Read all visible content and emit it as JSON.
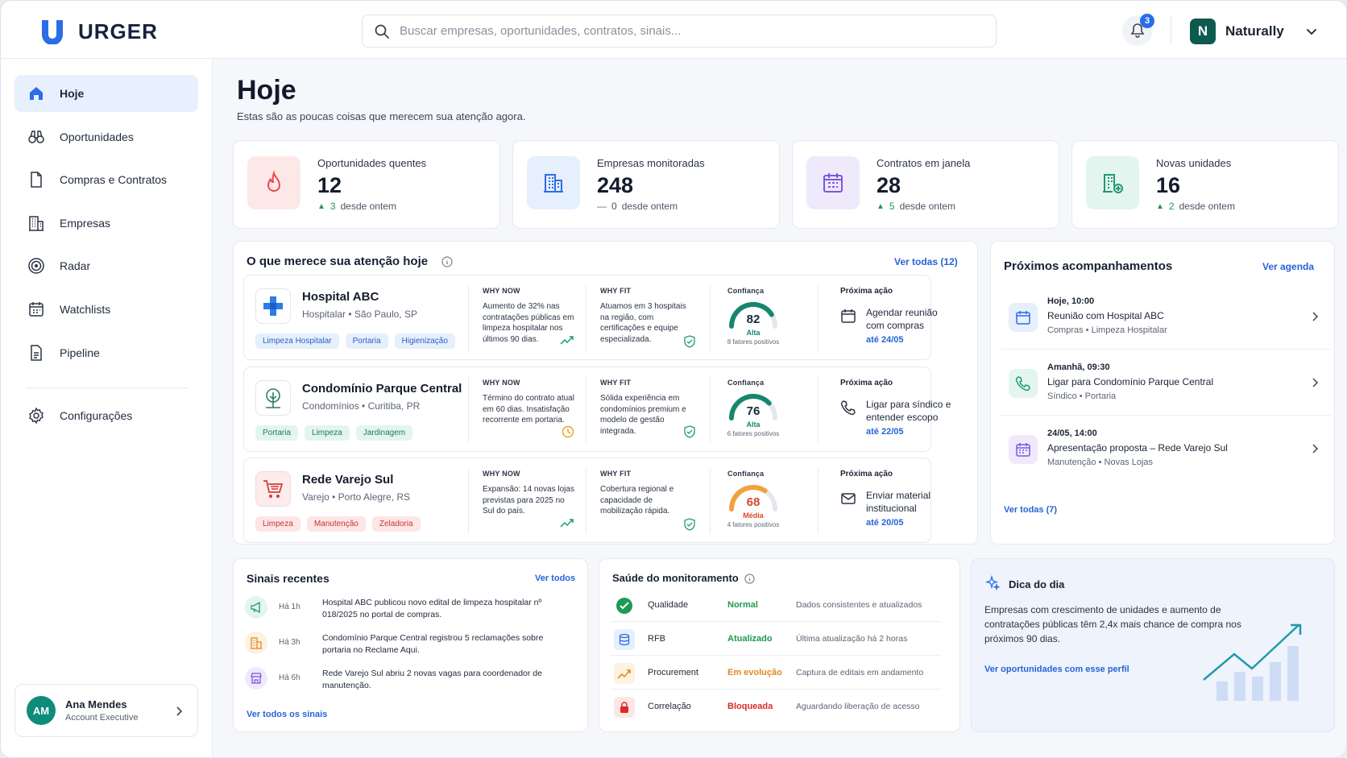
{
  "brand": {
    "name": "URGER"
  },
  "search": {
    "placeholder": "Buscar empresas, oportunidades, contratos, sinais..."
  },
  "notifications": {
    "count": "3"
  },
  "account": {
    "initial": "N",
    "name": "Naturally"
  },
  "sidebar": {
    "items": [
      {
        "label": "Hoje",
        "icon": "home-icon"
      },
      {
        "label": "Oportunidades",
        "icon": "binoculars-icon"
      },
      {
        "label": "Compras e Contratos",
        "icon": "document-icon"
      },
      {
        "label": "Empresas",
        "icon": "building-icon"
      },
      {
        "label": "Radar",
        "icon": "radar-icon"
      },
      {
        "label": "Watchlists",
        "icon": "calendar-icon"
      },
      {
        "label": "Pipeline",
        "icon": "pipeline-icon"
      }
    ],
    "settings": "Configurações",
    "profile": {
      "initials": "AM",
      "name": "Ana Mendes",
      "role": "Account Executive"
    }
  },
  "page": {
    "title": "Hoje",
    "subtitle": "Estas são as poucas coisas que merecem sua atenção agora."
  },
  "stats": [
    {
      "label": "Oportunidades quentes",
      "value": "12",
      "delta": "3",
      "delta_text": "desde ontem",
      "trend": "up",
      "icon": "fire-icon",
      "color": "#e8484a"
    },
    {
      "label": "Empresas monitoradas",
      "value": "248",
      "delta": "0",
      "delta_text": "desde ontem",
      "trend": "flat",
      "icon": "building-icon",
      "color": "#2b6de8"
    },
    {
      "label": "Contratos em janela",
      "value": "28",
      "delta": "5",
      "delta_text": "desde ontem",
      "trend": "up",
      "icon": "calendar-icon",
      "color": "#7b56e0"
    },
    {
      "label": "Novas unidades",
      "value": "16",
      "delta": "2",
      "delta_text": "desde ontem",
      "trend": "up",
      "icon": "building-plus-icon",
      "color": "#1f9a72"
    }
  ],
  "attention": {
    "title": "O que merece sua atenção hoje",
    "view_all": "Ver todas (12)",
    "why_now_label": "WHY NOW",
    "why_fit_label": "WHY FIT",
    "confidence_label": "Confiança",
    "next_label": "Próxima ação",
    "items": [
      {
        "name": "Hospital ABC",
        "sector": "Hospitalar",
        "location": "São Paulo, SP",
        "tags": [
          "Limpeza Hospitalar",
          "Portaria",
          "Higienização"
        ],
        "why_now": "Aumento de 32% nas contratações públicas em limpeza hospitalar nos últimos 90 dias.",
        "why_fit": "Atuamos em 3 hospitais na região, com certificações e equipe especializada.",
        "confidence": 82,
        "confidence_label": "Alta",
        "factors": "8 fatores positivos",
        "next_action": "Agendar reunião com compras",
        "next_date": "até 24/05"
      },
      {
        "name": "Condomínio Parque Central",
        "sector": "Condomínios",
        "location": "Curitiba, PR",
        "tags": [
          "Portaria",
          "Limpeza",
          "Jardinagem"
        ],
        "why_now": "Término do contrato atual em 60 dias. Insatisfação recorrente em portaria.",
        "why_fit": "Sólida experiência em condomínios premium e modelo de gestão integrada.",
        "confidence": 76,
        "confidence_label": "Alta",
        "factors": "6 fatores positivos",
        "next_action": "Ligar para síndico e entender escopo",
        "next_date": "até 22/05"
      },
      {
        "name": "Rede Varejo Sul",
        "sector": "Varejo",
        "location": "Porto Alegre, RS",
        "tags": [
          "Limpeza",
          "Manutenção",
          "Zeladoria"
        ],
        "why_now": "Expansão: 14 novas lojas previstas para 2025 no Sul do país.",
        "why_fit": "Cobertura regional e capacidade de mobilização rápida.",
        "confidence": 68,
        "confidence_label": "Média",
        "factors": "4 fatores positivos",
        "next_action": "Enviar material institucional",
        "next_date": "até 20/05"
      }
    ]
  },
  "followups": {
    "title": "Próximos acompanhamentos",
    "link": "Ver agenda",
    "view_all": "Ver todas (7)",
    "items": [
      {
        "when": "Hoje, 10:00",
        "title": "Reunião com Hospital ABC",
        "sub": "Compras • Limpeza Hospitalar"
      },
      {
        "when": "Amanhã, 09:30",
        "title": "Ligar para Condomínio Parque Central",
        "sub": "Síndico • Portaria"
      },
      {
        "when": "24/05, 14:00",
        "title": "Apresentação proposta – Rede Varejo Sul",
        "sub": "Manutenção • Novas Lojas"
      }
    ]
  },
  "signals": {
    "title": "Sinais recentes",
    "link": "Ver todos",
    "view_all": "Ver todos os sinais",
    "items": [
      {
        "time": "Há 1h",
        "text": "Hospital ABC publicou novo edital de limpeza hospitalar nº 018/2025 no portal de compras."
      },
      {
        "time": "Há 3h",
        "text": "Condomínio Parque Central registrou 5 reclamações sobre portaria no Reclame Aqui."
      },
      {
        "time": "Há 6h",
        "text": "Rede Varejo Sul abriu 2 novas vagas para coordenador de manutenção."
      }
    ]
  },
  "health": {
    "title": "Saúde do monitoramento",
    "items": [
      {
        "name": "Qualidade",
        "status": "Normal",
        "desc": "Dados consistentes e atualizados",
        "color": "#1f9a52"
      },
      {
        "name": "RFB",
        "status": "Atualizado",
        "desc": "Última atualização há 2 horas",
        "color": "#1f9a52"
      },
      {
        "name": "Procurement",
        "status": "Em evolução",
        "desc": "Captura de editais em andamento",
        "color": "#e08a1e"
      },
      {
        "name": "Correlação",
        "status": "Bloqueada",
        "desc": "Aguardando liberação de acesso",
        "color": "#d92b2b"
      }
    ]
  },
  "tip": {
    "title": "Dica do dia",
    "text": "Empresas com crescimento de unidades e aumento de contratações públicas têm 2,4x mais chance de compra nos próximos 90 dias.",
    "link": "Ver oportunidades com esse perfil"
  }
}
